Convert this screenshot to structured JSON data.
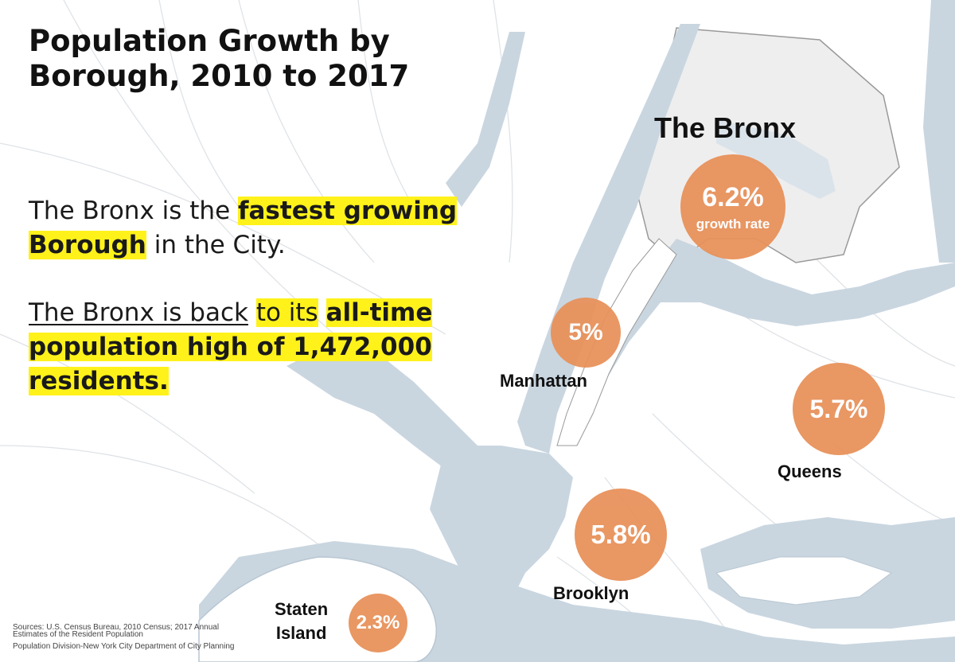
{
  "title": "Population Growth by Borough, 2010 to 2017",
  "statement1": {
    "part1": "The Bronx is the",
    "highlight1": "fastest growing Borough",
    "part2": "in the City."
  },
  "statement2": {
    "underlined": "The Bronx is back",
    "part1": "to its",
    "highlight1": "all-time population high of 1,472,000 residents."
  },
  "boroughs": [
    {
      "name": "The Bronx",
      "growth": "6.2%",
      "sub": "growth rate"
    },
    {
      "name": "Manhattan",
      "growth": "5%"
    },
    {
      "name": "Queens",
      "growth": "5.7%"
    },
    {
      "name": "Brooklyn",
      "growth": "5.8%"
    },
    {
      "name": "Staten Island",
      "name_line1": "Staten",
      "name_line2": "Island",
      "growth": "2.3%"
    }
  ],
  "sources": {
    "line1": "Sources: U.S. Census Bureau, 2010 Census; 2017 Annual",
    "line2": "Estimates of the Resident Population",
    "line3": "Population Division-New York City Department of City Planning"
  },
  "colors": {
    "water": "#c9d6e0",
    "bronx_fill": "#eeeeee",
    "bubble": "#e8915a",
    "highlight": "#fff21a"
  }
}
